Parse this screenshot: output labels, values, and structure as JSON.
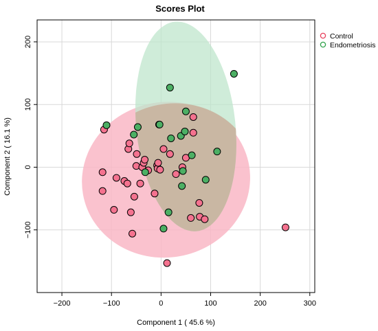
{
  "chart_data": {
    "type": "scatter",
    "title": "Scores Plot",
    "xlabel": "Component 1 ( 45.6 %)",
    "ylabel": "Component 2 ( 16.1 %)",
    "xlim": [
      -250,
      310
    ],
    "ylim": [
      -200,
      235
    ],
    "x_ticks": [
      -200,
      -100,
      0,
      100,
      200,
      300
    ],
    "y_ticks": [
      -100,
      0,
      100,
      200
    ],
    "x_tick_labels": [
      "−200",
      "−100",
      "0",
      "100",
      "200",
      "300"
    ],
    "y_tick_labels": [
      "−100",
      "0",
      "100",
      "200"
    ],
    "grid": true,
    "legend_position": "top-right",
    "colors": {
      "control": "#f4728f",
      "control_ring": "#e8405c",
      "control_ellipse": "#f9b7c6",
      "endometriosis": "#4caf64",
      "endometriosis_ring": "#2ea24a",
      "endometriosis_ellipse": "#bfe6cc",
      "overlap": "#c9b7a3",
      "grid": "#d8d8d8"
    },
    "series": [
      {
        "name": "Control",
        "color": "#f4728f",
        "ellipse": {
          "cx": 10,
          "cy": -20,
          "rx": 170,
          "ry": 124,
          "angle_deg": 10
        },
        "points": [
          [
            -115,
            60
          ],
          [
            -118,
            -8
          ],
          [
            -118,
            -38
          ],
          [
            -95,
            -68
          ],
          [
            -90,
            -17
          ],
          [
            -74,
            -22
          ],
          [
            -68,
            -26
          ],
          [
            -66,
            29
          ],
          [
            -64,
            38
          ],
          [
            -61,
            -72
          ],
          [
            -58,
            -106
          ],
          [
            -54,
            -47
          ],
          [
            -50,
            2
          ],
          [
            -49,
            21
          ],
          [
            -42,
            -26
          ],
          [
            -38,
            0
          ],
          [
            -35,
            7
          ],
          [
            -33,
            12
          ],
          [
            -26,
            -5
          ],
          [
            -13,
            -42
          ],
          [
            -8,
            3
          ],
          [
            -7,
            -2
          ],
          [
            -6,
            7
          ],
          [
            -4,
            68
          ],
          [
            -2,
            -4
          ],
          [
            5,
            29
          ],
          [
            12,
            -153
          ],
          [
            18,
            21
          ],
          [
            30,
            -11
          ],
          [
            43,
            0
          ],
          [
            50,
            15
          ],
          [
            60,
            -81
          ],
          [
            65,
            80
          ],
          [
            65,
            55
          ],
          [
            77,
            -57
          ],
          [
            78,
            -79
          ],
          [
            88,
            -83
          ],
          [
            251,
            -96
          ]
        ]
      },
      {
        "name": "Endometriosis",
        "color": "#4caf64",
        "ellipse": {
          "cx": 50,
          "cy": 65,
          "rx": 100,
          "ry": 168,
          "angle_deg": 6
        },
        "points": [
          [
            -110,
            67
          ],
          [
            -55,
            52
          ],
          [
            -47,
            64
          ],
          [
            -32,
            -8
          ],
          [
            -3,
            68
          ],
          [
            5,
            -98
          ],
          [
            15,
            -72
          ],
          [
            18,
            127
          ],
          [
            20,
            46
          ],
          [
            40,
            50
          ],
          [
            42,
            -30
          ],
          [
            44,
            -6
          ],
          [
            48,
            57
          ],
          [
            50,
            89
          ],
          [
            62,
            19
          ],
          [
            90,
            -20
          ],
          [
            113,
            25
          ],
          [
            147,
            149
          ]
        ]
      }
    ]
  }
}
